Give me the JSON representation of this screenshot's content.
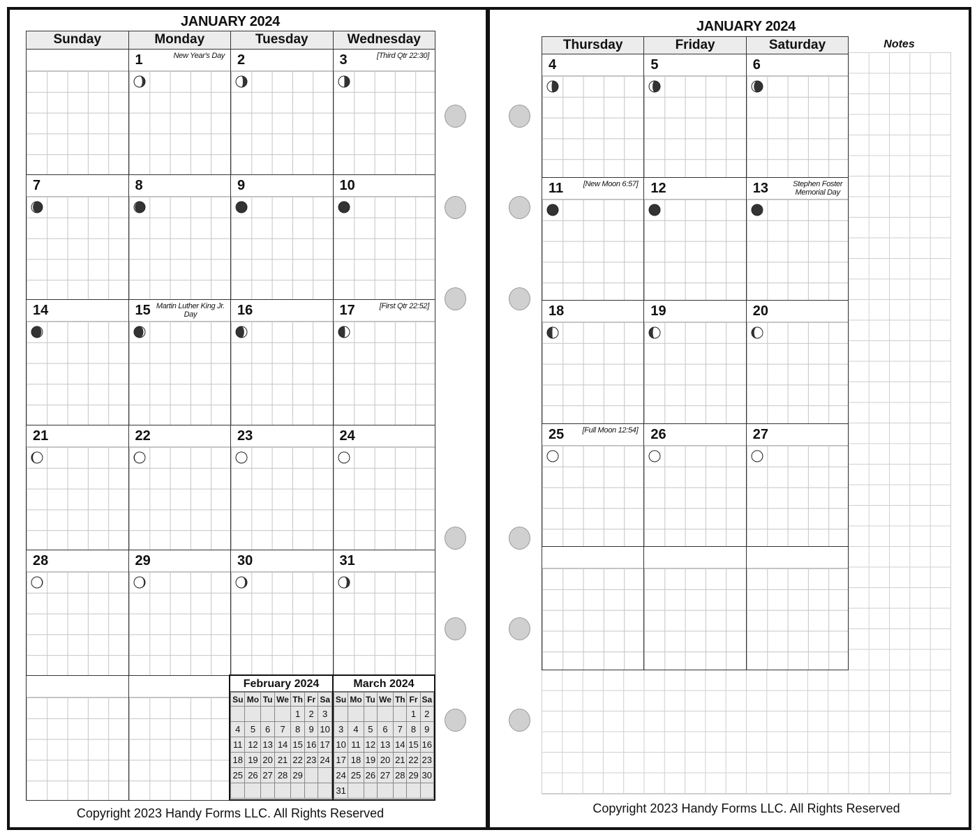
{
  "left_page": {
    "title": "JANUARY 2024",
    "weekdays": [
      "Sunday",
      "Monday",
      "Tuesday",
      "Wednesday"
    ],
    "copyright": "Copyright 2023 Handy Forms LLC. All Rights Reserved"
  },
  "right_page": {
    "title": "JANUARY 2024",
    "weekdays": [
      "Thursday",
      "Friday",
      "Saturday"
    ],
    "notes_label": "Notes",
    "copyright": "Copyright 2023 Handy Forms LLC. All Rights Reserved"
  },
  "days": [
    {
      "day": "1",
      "note": "New Year's Day",
      "moon": 0.67
    },
    {
      "day": "2",
      "note": "",
      "moon": 0.71
    },
    {
      "day": "3",
      "note": "[Third Qtr 22:30]",
      "moon": 0.74
    },
    {
      "day": "4",
      "note": "",
      "moon": 0.78
    },
    {
      "day": "5",
      "note": "",
      "moon": 0.81
    },
    {
      "day": "6",
      "note": "",
      "moon": 0.85
    },
    {
      "day": "7",
      "note": "",
      "moon": 0.88
    },
    {
      "day": "8",
      "note": "",
      "moon": 0.91
    },
    {
      "day": "9",
      "note": "",
      "moon": 0.94
    },
    {
      "day": "10",
      "note": "",
      "moon": 0.97
    },
    {
      "day": "11",
      "note": "[New Moon 6:57]",
      "moon": 0.0
    },
    {
      "day": "12",
      "note": "",
      "moon": 0.03
    },
    {
      "day": "13",
      "note": "Stephen Foster\nMemorial Day",
      "moon": 0.06
    },
    {
      "day": "14",
      "note": "",
      "moon": 0.1
    },
    {
      "day": "15",
      "note": "Martin Luther King Jr.\nDay",
      "moon": 0.13
    },
    {
      "day": "16",
      "note": "",
      "moon": 0.17
    },
    {
      "day": "17",
      "note": "[First Qtr 22:52]",
      "moon": 0.22
    },
    {
      "day": "18",
      "note": "",
      "moon": 0.26
    },
    {
      "day": "19",
      "note": "",
      "moon": 0.3
    },
    {
      "day": "20",
      "note": "",
      "moon": 0.34
    },
    {
      "day": "21",
      "note": "",
      "moon": 0.38
    },
    {
      "day": "22",
      "note": "",
      "moon": 0.42
    },
    {
      "day": "23",
      "note": "",
      "moon": 0.45
    },
    {
      "day": "24",
      "note": "",
      "moon": 0.48
    },
    {
      "day": "25",
      "note": "[Full Moon 12:54]",
      "moon": 0.5
    },
    {
      "day": "26",
      "note": "",
      "moon": 0.53
    },
    {
      "day": "27",
      "note": "",
      "moon": 0.56
    },
    {
      "day": "28",
      "note": "",
      "moon": 0.58
    },
    {
      "day": "29",
      "note": "",
      "moon": 0.61
    },
    {
      "day": "30",
      "note": "",
      "moon": 0.64
    },
    {
      "day": "31",
      "note": "",
      "moon": 0.67
    }
  ],
  "mini_calendars": [
    {
      "title": "February 2024",
      "headers": [
        "Su",
        "Mo",
        "Tu",
        "We",
        "Th",
        "Fr",
        "Sa"
      ],
      "weeks": [
        [
          "",
          "",
          "",
          "",
          "1",
          "2",
          "3"
        ],
        [
          "4",
          "5",
          "6",
          "7",
          "8",
          "9",
          "10"
        ],
        [
          "11",
          "12",
          "13",
          "14",
          "15",
          "16",
          "17"
        ],
        [
          "18",
          "19",
          "20",
          "21",
          "22",
          "23",
          "24"
        ],
        [
          "25",
          "26",
          "27",
          "28",
          "29",
          "",
          ""
        ],
        [
          "",
          "",
          "",
          "",
          "",
          "",
          ""
        ]
      ]
    },
    {
      "title": "March 2024",
      "headers": [
        "Su",
        "Mo",
        "Tu",
        "We",
        "Th",
        "Fr",
        "Sa"
      ],
      "weeks": [
        [
          "",
          "",
          "",
          "",
          "",
          "1",
          "2"
        ],
        [
          "3",
          "4",
          "5",
          "6",
          "7",
          "8",
          "9"
        ],
        [
          "10",
          "11",
          "12",
          "13",
          "14",
          "15",
          "16"
        ],
        [
          "17",
          "18",
          "19",
          "20",
          "21",
          "22",
          "23"
        ],
        [
          "24",
          "25",
          "26",
          "27",
          "28",
          "29",
          "30"
        ],
        [
          "31",
          "",
          "",
          "",
          "",
          "",
          ""
        ]
      ]
    }
  ],
  "colors": {
    "moon_dark": "#333333",
    "moon_light": "#ffffff",
    "hole": "#d0d0d0",
    "header_bg": "#ececec"
  }
}
